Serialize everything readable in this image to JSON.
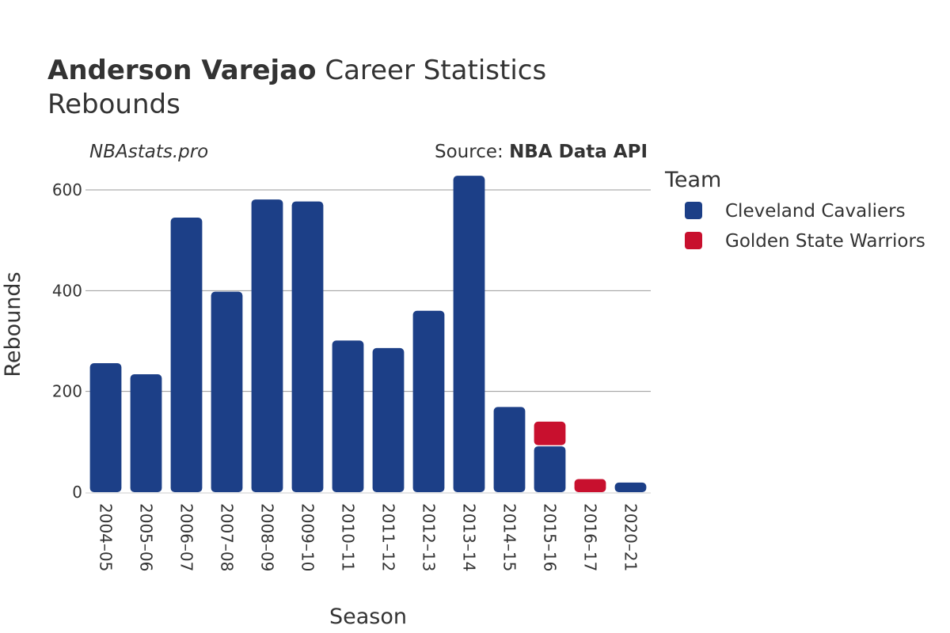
{
  "title": {
    "name": "Anderson Varejao",
    "rest": " Career Statistics",
    "subtitle": "Rebounds"
  },
  "watermark": "NBAstats.pro",
  "source": {
    "prefix": "Source: ",
    "name": "NBA Data API"
  },
  "legend": {
    "title": "Team",
    "items": [
      {
        "name": "Cleveland Cavaliers",
        "color": "#1c3f87"
      },
      {
        "name": "Golden State Warriors",
        "color": "#c8102e"
      }
    ]
  },
  "chart_data": {
    "type": "bar",
    "stacked": true,
    "categories": [
      "2004–05",
      "2005–06",
      "2006–07",
      "2007–08",
      "2008–09",
      "2009–10",
      "2010–11",
      "2011–12",
      "2012–13",
      "2013–14",
      "2014–15",
      "2015–16",
      "2016–17",
      "2020–21"
    ],
    "series": [
      {
        "name": "Cleveland Cavaliers",
        "color": "#1c3f87",
        "values": [
          256,
          234,
          545,
          398,
          581,
          577,
          301,
          286,
          360,
          628,
          169,
          91,
          0,
          19
        ]
      },
      {
        "name": "Golden State Warriors",
        "color": "#c8102e",
        "values": [
          0,
          0,
          0,
          0,
          0,
          0,
          0,
          0,
          0,
          0,
          0,
          49,
          26,
          0
        ]
      }
    ],
    "xlabel": "Season",
    "ylabel": "Rebounds",
    "ylim": [
      0,
      600
    ],
    "yticks": [
      0,
      200,
      400,
      600
    ],
    "grid": true,
    "legend_position": "right"
  }
}
